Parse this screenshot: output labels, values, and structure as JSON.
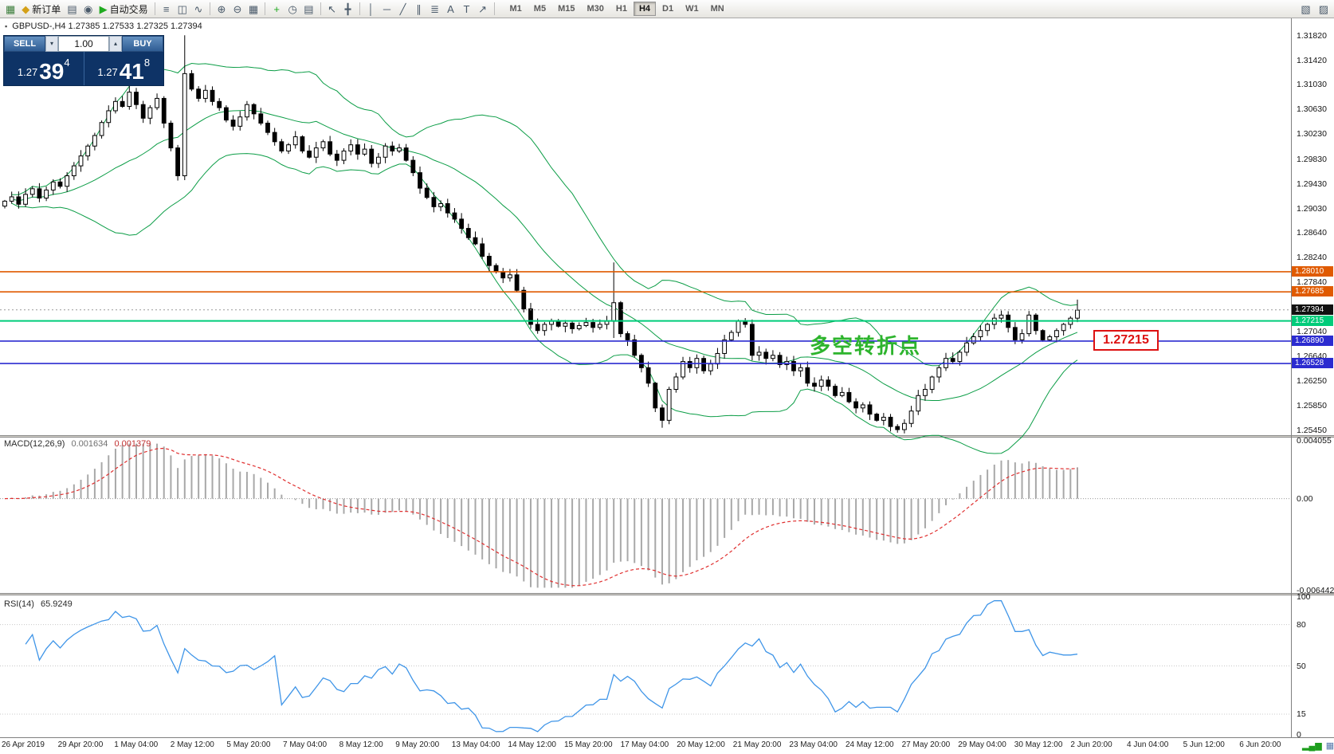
{
  "toolbar": {
    "buttons_left": [
      {
        "name": "new-chart-icon",
        "glyph": "▦",
        "glyph_color": "#3a7d3a"
      },
      {
        "name": "new-order-button",
        "glyph": "◆",
        "glyph_color": "#d4a017",
        "label": "新订单"
      },
      {
        "name": "chart-profiles-icon",
        "glyph": "▤"
      },
      {
        "name": "alerts-icon",
        "glyph": "◉"
      },
      {
        "name": "autotrade-button",
        "glyph": "▶",
        "glyph_color": "#1faa1f",
        "label": "自动交易"
      },
      {
        "sep": true
      },
      {
        "name": "bar-chart-icon",
        "glyph": "≡"
      },
      {
        "name": "candlestick-chart-icon",
        "glyph": "◫"
      },
      {
        "name": "line-chart-icon",
        "glyph": "∿"
      },
      {
        "sep": true
      },
      {
        "name": "zoom-in-icon",
        "glyph": "⊕"
      },
      {
        "name": "zoom-out-icon",
        "glyph": "⊖"
      },
      {
        "name": "tile-windows-icon",
        "glyph": "▦"
      },
      {
        "sep": true
      },
      {
        "name": "indicators-icon",
        "glyph": "+",
        "glyph_color": "#1faa1f"
      },
      {
        "name": "periods-icon",
        "glyph": "◷"
      },
      {
        "name": "templates-icon",
        "glyph": "▤"
      },
      {
        "sep": true
      },
      {
        "name": "cursor-icon",
        "glyph": "↖"
      },
      {
        "name": "crosshair-icon",
        "glyph": "╋"
      },
      {
        "sep": true
      },
      {
        "name": "vertical-line-icon",
        "glyph": "│"
      },
      {
        "name": "horizontal-line-icon",
        "glyph": "─"
      },
      {
        "name": "trendline-icon",
        "glyph": "╱"
      },
      {
        "name": "channel-icon",
        "glyph": "∥"
      },
      {
        "name": "fibonacci-icon",
        "glyph": "≣"
      },
      {
        "name": "text-icon",
        "glyph": "A"
      },
      {
        "name": "text-label-icon",
        "glyph": "T"
      },
      {
        "name": "arrow-tool-icon",
        "glyph": "↗"
      },
      {
        "sep": true
      }
    ],
    "timeframes": [
      {
        "label": "M1"
      },
      {
        "label": "M5"
      },
      {
        "label": "M15"
      },
      {
        "label": "M30"
      },
      {
        "label": "H1"
      },
      {
        "label": "H4",
        "active": true
      },
      {
        "label": "D1"
      },
      {
        "label": "W1"
      },
      {
        "label": "MN"
      }
    ],
    "right_icons": [
      {
        "name": "market-watch-toggle-icon",
        "glyph": "▧"
      },
      {
        "name": "terminal-toggle-icon",
        "glyph": "▨"
      }
    ]
  },
  "quote_panel": {
    "sell_label": "SELL",
    "buy_label": "BUY",
    "lot_value": "1.00",
    "lot_down_glyph": "▾",
    "lot_up_glyph": "▴",
    "sell_price": {
      "prefix": "1.27",
      "main": "39",
      "sup": "4"
    },
    "buy_price": {
      "prefix": "1.27",
      "main": "41",
      "sup": "8"
    },
    "symbol_icon_glyph": "▪"
  },
  "chart_data": {
    "type": "candlestick",
    "symbol": "GBPUSD-",
    "timeframe": "H4",
    "symbol_ohlc": "GBPUSD-,H4  1.27385 1.27533 1.27325 1.27394",
    "annotation": "多空转折点",
    "callout": "1.27215",
    "price_range": {
      "max": 1.3209,
      "min": 1.2537
    },
    "price_ticks": [
      "1.31820",
      "1.31420",
      "1.31030",
      "1.30630",
      "1.30230",
      "1.29830",
      "1.29430",
      "1.29030",
      "1.28640",
      "1.28240",
      "1.27840",
      "1.27040",
      "1.26640",
      "1.26250",
      "1.25850",
      "1.25450"
    ],
    "levels": [
      {
        "value": 1.2801,
        "label": "1.28010",
        "color": "#e05a00",
        "width": 1.6
      },
      {
        "value": 1.27685,
        "label": "1.27685",
        "color": "#e05a00",
        "width": 1.6
      },
      {
        "value": 1.27394,
        "label": "1.27394",
        "color": "#111111",
        "style": "current",
        "width": 1
      },
      {
        "value": 1.27215,
        "label": "1.27215",
        "color": "#00cc7a",
        "width": 2
      },
      {
        "value": 1.2689,
        "label": "1.26890",
        "color": "#2b2bd0",
        "width": 1.6
      },
      {
        "value": 1.26528,
        "label": "1.26528",
        "color": "#2b2bd0",
        "width": 1.6
      }
    ],
    "closes": [
      1.2915,
      1.2922,
      1.291,
      1.2926,
      1.2935,
      1.292,
      1.2933,
      1.2946,
      1.2939,
      1.2956,
      1.2972,
      1.2988,
      1.3004,
      1.3021,
      1.3042,
      1.3061,
      1.3076,
      1.3068,
      1.3091,
      1.3071,
      1.3049,
      1.3066,
      1.3081,
      1.3041,
      1.3001,
      1.2956,
      1.3121,
      1.3096,
      1.3081,
      1.3094,
      1.3076,
      1.3066,
      1.3046,
      1.3036,
      1.3051,
      1.3071,
      1.3056,
      1.3041,
      1.3026,
      1.3011,
      1.2996,
      1.3006,
      1.3019,
      1.2996,
      1.2986,
      1.3001,
      1.3011,
      1.2991,
      1.2981,
      1.2996,
      1.3006,
      1.2991,
      1.2999,
      1.2976,
      1.2986,
      1.3004,
      1.2996,
      1.3001,
      1.2981,
      1.2961,
      1.2936,
      1.2921,
      1.2906,
      1.2911,
      1.2896,
      1.2886,
      1.2871,
      1.2856,
      1.2846,
      1.2826,
      1.2811,
      1.2801,
      1.2791,
      1.2796,
      1.2771,
      1.2741,
      1.2716,
      1.2706,
      1.2716,
      1.2721,
      1.2713,
      1.2718,
      1.2709,
      1.2714,
      1.2719,
      1.2711,
      1.2716,
      1.2721,
      1.2751,
      1.2701,
      1.2691,
      1.2666,
      1.2646,
      1.2621,
      1.2581,
      1.2561,
      1.2611,
      1.2631,
      1.2656,
      1.2646,
      1.2661,
      1.2641,
      1.2652,
      1.2669,
      1.2691,
      1.2703,
      1.2721,
      1.2716,
      1.2666,
      1.2671,
      1.2661,
      1.2666,
      1.2651,
      1.2656,
      1.2641,
      1.2646,
      1.2621,
      1.2616,
      1.2626,
      1.2616,
      1.2601,
      1.2606,
      1.2591,
      1.2581,
      1.2586,
      1.2571,
      1.2561,
      1.2566,
      1.2551,
      1.2546,
      1.2556,
      1.2576,
      1.2601,
      1.2611,
      1.2631,
      1.2646,
      1.2661,
      1.2656,
      1.2671,
      1.2686,
      1.2696,
      1.2706,
      1.2716,
      1.2726,
      1.2731,
      1.2711,
      1.2691,
      1.2701,
      1.2731,
      1.2706,
      1.2691,
      1.2696,
      1.2706,
      1.2716,
      1.2726,
      1.2739
    ],
    "wick_overrides": {
      "18": {
        "high": 1.3103
      },
      "26": {
        "high": 1.3183,
        "low": 1.2949
      },
      "88": {
        "high": 1.2816,
        "low": 1.2694
      },
      "95": {
        "low": 1.2549
      },
      "128": {
        "low": 1.2543
      },
      "129": {
        "low": 1.2541
      },
      "155": {
        "high": 1.2756
      }
    },
    "time_labels": [
      "26 Apr 2019",
      "29 Apr 20:00",
      "1 May 04:00",
      "2 May 12:00",
      "5 May 20:00",
      "7 May 04:00",
      "8 May 12:00",
      "9 May 20:00",
      "13 May 04:00",
      "14 May 12:00",
      "15 May 20:00",
      "17 May 04:00",
      "20 May 12:00",
      "21 May 20:00",
      "23 May 04:00",
      "24 May 12:00",
      "27 May 20:00",
      "29 May 04:00",
      "30 May 12:00",
      "2 Jun 20:00",
      "4 Jun 04:00",
      "5 Jun 12:00",
      "6 Jun 20:00"
    ],
    "colors": {
      "up": "#ffffff",
      "down": "#000000",
      "outline": "#000000",
      "bollinger": "#0b9d46",
      "macd_hist": "#a8a8a8",
      "macd_signal": "#e03030",
      "rsi": "#3f95e8",
      "grid_dotted": "#c8c8c8"
    },
    "indicators": {
      "macd": {
        "title": "MACD(12,26,9)",
        "value_main": "0.001634",
        "value_signal": "0.001379",
        "params": [
          12,
          26,
          9
        ],
        "range": {
          "max": 0.004055,
          "min": -0.006442
        },
        "axis_labels": [
          {
            "text": "0.004055",
            "v": 0.004055
          },
          {
            "text": "0.00",
            "v": 0
          },
          {
            "text": "-0.006442",
            "v": -0.006442
          }
        ]
      },
      "rsi": {
        "title": "RSI(14)",
        "value": "65.9249",
        "period": 14,
        "levels": [
          80,
          50,
          15
        ],
        "axis_labels": [
          {
            "text": "100",
            "v": 100
          },
          {
            "text": "80",
            "v": 80
          },
          {
            "text": "50",
            "v": 50
          },
          {
            "text": "15",
            "v": 15
          },
          {
            "text": "0",
            "v": 0
          }
        ]
      }
    }
  },
  "status": {
    "icons": [
      {
        "name": "connection-status-icon",
        "glyph": "▂▄▆",
        "color": "#1d9e1d"
      },
      {
        "name": "tick-data-icon",
        "glyph": "▦",
        "color": "#5577aa"
      }
    ]
  }
}
